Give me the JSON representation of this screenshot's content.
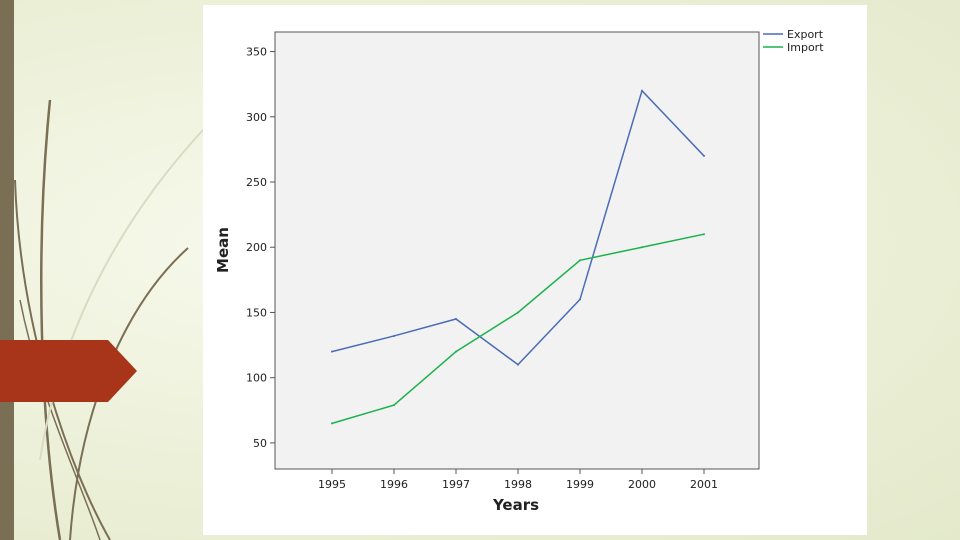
{
  "chart_data": {
    "type": "line",
    "title": "",
    "xlabel": "Years",
    "ylabel": "Mean",
    "categories": [
      "1995",
      "1996",
      "1997",
      "1998",
      "1999",
      "2000",
      "2001"
    ],
    "yticks": [
      50,
      100,
      150,
      200,
      250,
      300,
      350
    ],
    "ylim": [
      30,
      365
    ],
    "grid": false,
    "legend_position": "top-right-outside",
    "series": [
      {
        "name": "Export",
        "color": "#4a6cb5",
        "values": [
          120,
          132,
          145,
          110,
          160,
          320,
          270
        ]
      },
      {
        "name": "Import",
        "color": "#19b24b",
        "values": [
          65,
          79,
          120,
          150,
          190,
          200,
          210
        ]
      }
    ]
  },
  "colors": {
    "plot_background": "#f2f2f2",
    "accent_arrow": "#a8341a",
    "side_bar": "#7a6f55"
  }
}
